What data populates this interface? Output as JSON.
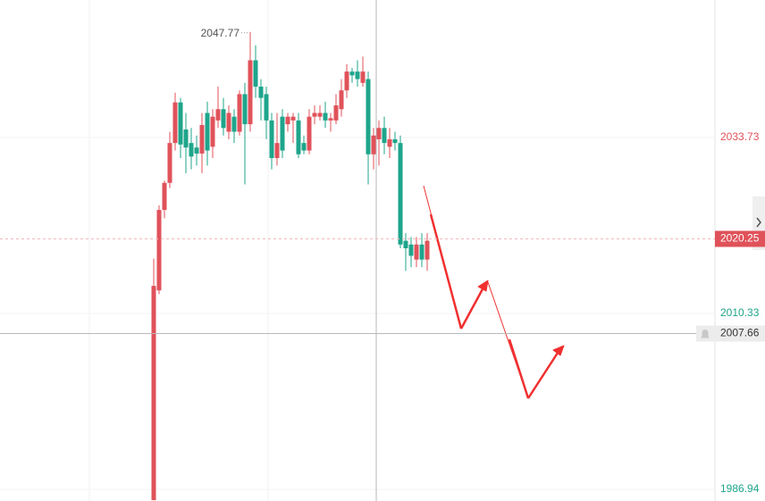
{
  "chart_data": {
    "type": "candlestick",
    "up_color": "#e0525a",
    "down_color": "#1ea58b",
    "open": [
      1985.5,
      2013.4,
      2024.1,
      2027.7,
      2033.0,
      2038.4,
      2034.8,
      2033.0,
      2032.4,
      2031.6,
      2037.0,
      2032.5,
      2036.0,
      2037.5,
      2034.5,
      2036.5,
      2034.5,
      2039.5,
      2035.5,
      2044.0,
      2040.5,
      2039.5,
      2036.0,
      2031.0,
      2036.5,
      2035.5,
      2036.0,
      2036.0,
      2033.0,
      2032.0,
      2036.5,
      2036.5,
      2037.0,
      2036.0,
      2036.0,
      2037.5,
      2040.0,
      2042.5,
      2042.5,
      2041.0,
      2041.5,
      2031.5,
      2033.5,
      2035.0,
      2032.5,
      2033.5,
      2033.0,
      2020.0,
      2019.5,
      2017.5,
      2019.5,
      2017.5
    ],
    "high": [
      2017.6,
      2024.7,
      2028.0,
      2034.5,
      2039.7,
      2039.0,
      2037.0,
      2035.0,
      2034.0,
      2037.0,
      2038.5,
      2037.5,
      2040.5,
      2039.0,
      2038.0,
      2037.5,
      2040.0,
      2041.0,
      2047.77,
      2046.0,
      2041.5,
      2040.5,
      2037.0,
      2037.0,
      2037.5,
      2037.0,
      2037.0,
      2037.0,
      2034.0,
      2037.5,
      2038.0,
      2038.0,
      2038.5,
      2037.0,
      2039.5,
      2041.5,
      2043.5,
      2043.0,
      2044.0,
      2044.5,
      2042.5,
      2035.0,
      2036.0,
      2036.5,
      2035.0,
      2034.5,
      2034.0,
      2021.0,
      2020.5,
      2020.5,
      2021.0,
      2021.0
    ],
    "low": [
      1985.5,
      2012.9,
      2023.0,
      2027.0,
      2032.0,
      2031.0,
      2029.0,
      2029.5,
      2030.0,
      2029.0,
      2030.0,
      2031.0,
      2035.0,
      2034.0,
      2033.5,
      2033.0,
      2034.0,
      2027.5,
      2034.5,
      2039.0,
      2036.0,
      2033.5,
      2029.5,
      2030.0,
      2031.0,
      2034.5,
      2033.0,
      2031.0,
      2031.5,
      2031.5,
      2035.5,
      2036.0,
      2035.0,
      2034.5,
      2035.5,
      2036.5,
      2039.0,
      2041.0,
      2040.5,
      2040.5,
      2027.5,
      2029.5,
      2030.0,
      2031.5,
      2031.0,
      2032.0,
      2019.0,
      2016.0,
      2016.5,
      2016.5,
      2016.5,
      2016.0
    ],
    "close": [
      2014.0,
      2024.1,
      2027.7,
      2033.0,
      2038.4,
      2032.8,
      2032.4,
      2031.2,
      2031.6,
      2035.4,
      2032.0,
      2036.5,
      2037.5,
      2035.0,
      2037.0,
      2034.5,
      2039.5,
      2035.5,
      2044.0,
      2040.5,
      2039.0,
      2036.0,
      2031.0,
      2033.0,
      2032.0,
      2036.5,
      2036.5,
      2031.5,
      2032.0,
      2036.5,
      2037.0,
      2037.0,
      2036.0,
      2036.3,
      2038.0,
      2040.0,
      2042.5,
      2042.0,
      2041.5,
      2042.5,
      2031.5,
      2034.0,
      2035.0,
      2033.0,
      2033.5,
      2033.0,
      2019.5,
      2019.0,
      2018.0,
      2019.5,
      2017.5,
      2020.0
    ],
    "ylim": [
      1985.39,
      2052.02
    ],
    "yticks": [
      1986.94,
      2010.33,
      2033.73
    ],
    "ytick_colors": [
      "#1ea58b",
      "#1ea58b",
      "#e0525a"
    ],
    "high_label": 2047.77,
    "last_price": 2020.25,
    "crosshair_price": 2007.66
  }
}
